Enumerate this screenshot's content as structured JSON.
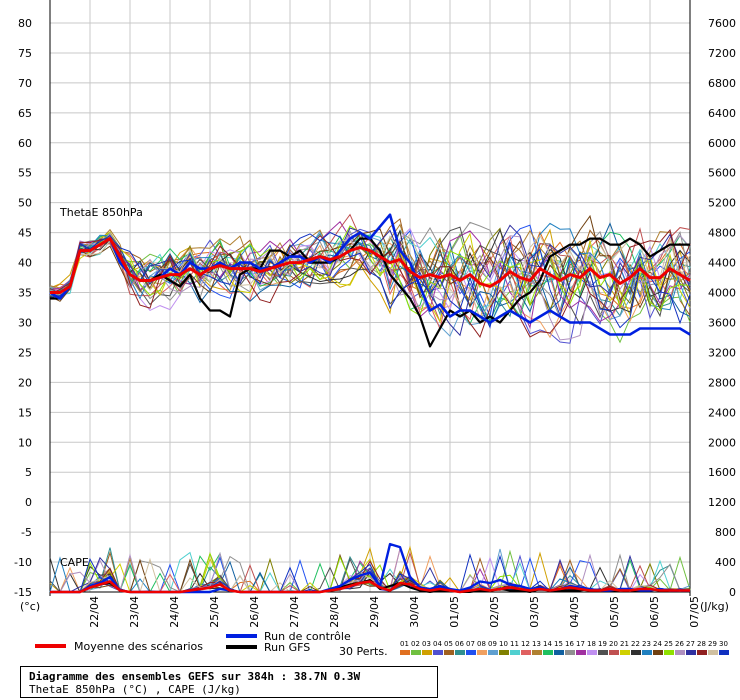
{
  "chart_data": {
    "type": "line",
    "title": "Diagramme des ensembles GEFS sur 384h : 38.7N 0.3W",
    "subtitle": "ThetaE 850hPa (°C) , CAPE (J/kg)",
    "panel_labels": {
      "thetae": "ThetaE 850hPa",
      "cape": "CAPE"
    },
    "left_unit": "(°c)",
    "right_unit": "(J/kg)",
    "left_axis": {
      "ticks": [
        80,
        75,
        70,
        65,
        60,
        55,
        50,
        45,
        40,
        35,
        30,
        25,
        20,
        15,
        10,
        5,
        0,
        -5,
        -10,
        -15
      ],
      "range": [
        -15,
        80
      ]
    },
    "right_axis": {
      "ticks": [
        7600,
        7200,
        6800,
        6400,
        6000,
        5600,
        5200,
        4800,
        4400,
        4000,
        3600,
        3200,
        2800,
        2400,
        2000,
        1600,
        1200,
        800,
        400,
        0
      ],
      "range": [
        0,
        7600
      ]
    },
    "dates": [
      "22/04",
      "23/04",
      "24/04",
      "25/04",
      "26/04",
      "27/04",
      "28/04",
      "29/04",
      "30/04",
      "01/05",
      "02/05",
      "03/05",
      "04/05",
      "05/05",
      "06/05",
      "07/05"
    ],
    "x_range_hours": [
      0,
      384
    ],
    "legend": {
      "mean": "Moyenne des scénarios",
      "control": "Run de contrôle",
      "gfs": "Run GFS",
      "perts": "30 Perts."
    },
    "perturbation_labels": [
      "01",
      "02",
      "03",
      "04",
      "05",
      "06",
      "07",
      "08",
      "09",
      "10",
      "11",
      "12",
      "13",
      "14",
      "15",
      "16",
      "17",
      "18",
      "19",
      "20",
      "21",
      "22",
      "23",
      "24",
      "25",
      "26",
      "27",
      "28",
      "29",
      "30"
    ],
    "perturbation_colors": [
      "#e07020",
      "#70c040",
      "#d0a000",
      "#5050d0",
      "#a06020",
      "#309090",
      "#2050f0",
      "#f0a060",
      "#60a0d0",
      "#808000",
      "#50d0d0",
      "#e06060",
      "#b08030",
      "#20c060",
      "#1060a0",
      "#909090",
      "#a030a0",
      "#c090f0",
      "#505050",
      "#c05050",
      "#d0d000",
      "#303030",
      "#2080c0",
      "#704010",
      "#90e000",
      "#b090c0",
      "#3030a0",
      "#902020",
      "#d0c0a0",
      "#1030c0"
    ],
    "series_mean_thetae": [
      [
        0,
        35
      ],
      [
        6,
        35
      ],
      [
        12,
        36
      ],
      [
        18,
        42
      ],
      [
        24,
        42
      ],
      [
        30,
        43
      ],
      [
        36,
        44
      ],
      [
        42,
        41
      ],
      [
        48,
        38
      ],
      [
        54,
        37
      ],
      [
        60,
        37
      ],
      [
        66,
        37.5
      ],
      [
        72,
        38
      ],
      [
        78,
        38
      ],
      [
        84,
        39
      ],
      [
        90,
        38
      ],
      [
        96,
        39
      ],
      [
        102,
        39.5
      ],
      [
        108,
        39
      ],
      [
        114,
        39
      ],
      [
        120,
        39
      ],
      [
        126,
        38.5
      ],
      [
        132,
        39
      ],
      [
        138,
        39.5
      ],
      [
        144,
        40
      ],
      [
        150,
        40
      ],
      [
        156,
        40.5
      ],
      [
        162,
        41
      ],
      [
        168,
        40.5
      ],
      [
        174,
        41
      ],
      [
        180,
        42
      ],
      [
        186,
        42.5
      ],
      [
        192,
        42
      ],
      [
        198,
        41
      ],
      [
        204,
        40
      ],
      [
        210,
        40.5
      ],
      [
        216,
        38.5
      ],
      [
        222,
        37.5
      ],
      [
        228,
        38
      ],
      [
        234,
        37.5
      ],
      [
        240,
        38
      ],
      [
        246,
        37
      ],
      [
        252,
        38
      ],
      [
        258,
        36.5
      ],
      [
        264,
        36
      ],
      [
        270,
        37
      ],
      [
        276,
        38.5
      ],
      [
        282,
        37.5
      ],
      [
        288,
        37
      ],
      [
        294,
        39
      ],
      [
        300,
        38
      ],
      [
        306,
        37
      ],
      [
        312,
        38
      ],
      [
        318,
        37.5
      ],
      [
        324,
        39
      ],
      [
        330,
        37.5
      ],
      [
        336,
        38
      ],
      [
        342,
        36.5
      ],
      [
        348,
        37.5
      ],
      [
        354,
        39
      ],
      [
        360,
        37.5
      ],
      [
        366,
        37.5
      ],
      [
        372,
        39
      ],
      [
        378,
        38
      ],
      [
        384,
        37
      ]
    ],
    "series_control_thetae": [
      [
        0,
        35
      ],
      [
        6,
        34
      ],
      [
        12,
        36
      ],
      [
        18,
        42
      ],
      [
        24,
        42
      ],
      [
        30,
        43
      ],
      [
        36,
        44
      ],
      [
        42,
        40
      ],
      [
        48,
        38
      ],
      [
        54,
        37
      ],
      [
        60,
        37
      ],
      [
        66,
        37.5
      ],
      [
        72,
        39
      ],
      [
        78,
        38
      ],
      [
        84,
        40
      ],
      [
        90,
        39
      ],
      [
        96,
        39
      ],
      [
        102,
        40
      ],
      [
        108,
        39
      ],
      [
        114,
        40
      ],
      [
        120,
        40
      ],
      [
        126,
        39
      ],
      [
        132,
        39
      ],
      [
        138,
        40
      ],
      [
        144,
        41
      ],
      [
        150,
        41
      ],
      [
        156,
        40
      ],
      [
        162,
        41
      ],
      [
        168,
        40
      ],
      [
        174,
        42
      ],
      [
        180,
        44
      ],
      [
        186,
        45
      ],
      [
        192,
        44
      ],
      [
        198,
        46
      ],
      [
        204,
        48
      ],
      [
        210,
        42
      ],
      [
        216,
        40
      ],
      [
        222,
        36
      ],
      [
        228,
        32
      ],
      [
        234,
        33
      ],
      [
        240,
        31
      ],
      [
        246,
        32
      ],
      [
        252,
        32
      ],
      [
        258,
        31
      ],
      [
        264,
        30
      ],
      [
        270,
        31
      ],
      [
        276,
        32
      ],
      [
        282,
        31
      ],
      [
        288,
        30
      ],
      [
        294,
        31
      ],
      [
        300,
        32
      ],
      [
        306,
        31
      ],
      [
        312,
        30
      ],
      [
        318,
        30
      ],
      [
        324,
        30
      ],
      [
        330,
        29
      ],
      [
        336,
        28
      ],
      [
        342,
        28
      ],
      [
        348,
        28
      ],
      [
        354,
        29
      ],
      [
        360,
        29
      ],
      [
        366,
        29
      ],
      [
        372,
        29
      ],
      [
        378,
        29
      ],
      [
        384,
        28
      ]
    ],
    "series_gfs_thetae": [
      [
        0,
        34
      ],
      [
        6,
        34
      ],
      [
        12,
        36
      ],
      [
        18,
        42
      ],
      [
        24,
        42
      ],
      [
        30,
        43
      ],
      [
        36,
        44
      ],
      [
        42,
        41
      ],
      [
        48,
        38
      ],
      [
        54,
        37
      ],
      [
        60,
        37
      ],
      [
        66,
        38
      ],
      [
        72,
        37
      ],
      [
        78,
        36
      ],
      [
        84,
        38
      ],
      [
        90,
        34
      ],
      [
        96,
        32
      ],
      [
        102,
        32
      ],
      [
        108,
        31
      ],
      [
        114,
        38
      ],
      [
        120,
        39
      ],
      [
        126,
        39
      ],
      [
        132,
        42
      ],
      [
        138,
        42
      ],
      [
        144,
        41
      ],
      [
        150,
        42
      ],
      [
        156,
        40
      ],
      [
        162,
        40
      ],
      [
        168,
        40
      ],
      [
        174,
        41
      ],
      [
        180,
        42
      ],
      [
        186,
        44
      ],
      [
        192,
        44
      ],
      [
        198,
        42
      ],
      [
        204,
        38
      ],
      [
        210,
        36
      ],
      [
        216,
        34
      ],
      [
        222,
        31
      ],
      [
        228,
        26
      ],
      [
        234,
        29
      ],
      [
        240,
        32
      ],
      [
        246,
        31
      ],
      [
        252,
        32
      ],
      [
        258,
        30
      ],
      [
        264,
        31
      ],
      [
        270,
        30
      ],
      [
        276,
        32
      ],
      [
        282,
        34
      ],
      [
        288,
        35
      ],
      [
        294,
        37
      ],
      [
        300,
        41
      ],
      [
        306,
        42
      ],
      [
        312,
        43
      ],
      [
        318,
        43
      ],
      [
        324,
        44
      ],
      [
        330,
        44
      ],
      [
        336,
        43
      ],
      [
        342,
        43
      ],
      [
        348,
        44
      ],
      [
        354,
        43
      ],
      [
        360,
        41
      ],
      [
        366,
        42
      ],
      [
        372,
        43
      ],
      [
        378,
        43
      ],
      [
        384,
        43
      ]
    ],
    "series_mean_cape": [
      [
        0,
        0
      ],
      [
        6,
        0
      ],
      [
        12,
        0
      ],
      [
        18,
        0
      ],
      [
        24,
        60
      ],
      [
        30,
        100
      ],
      [
        36,
        140
      ],
      [
        42,
        20
      ],
      [
        48,
        0
      ],
      [
        54,
        0
      ],
      [
        60,
        0
      ],
      [
        66,
        0
      ],
      [
        72,
        0
      ],
      [
        78,
        0
      ],
      [
        84,
        20
      ],
      [
        90,
        40
      ],
      [
        96,
        60
      ],
      [
        102,
        100
      ],
      [
        108,
        20
      ],
      [
        114,
        0
      ],
      [
        120,
        0
      ],
      [
        126,
        0
      ],
      [
        132,
        0
      ],
      [
        138,
        0
      ],
      [
        144,
        0
      ],
      [
        150,
        0
      ],
      [
        156,
        0
      ],
      [
        162,
        0
      ],
      [
        168,
        20
      ],
      [
        174,
        40
      ],
      [
        180,
        80
      ],
      [
        186,
        120
      ],
      [
        192,
        140
      ],
      [
        198,
        60
      ],
      [
        204,
        20
      ],
      [
        210,
        120
      ],
      [
        216,
        100
      ],
      [
        222,
        40
      ],
      [
        228,
        20
      ],
      [
        234,
        40
      ],
      [
        240,
        20
      ],
      [
        246,
        0
      ],
      [
        252,
        20
      ],
      [
        258,
        40
      ],
      [
        264,
        20
      ],
      [
        270,
        40
      ],
      [
        276,
        60
      ],
      [
        282,
        40
      ],
      [
        288,
        20
      ],
      [
        294,
        40
      ],
      [
        300,
        20
      ],
      [
        306,
        40
      ],
      [
        312,
        60
      ],
      [
        318,
        40
      ],
      [
        324,
        20
      ],
      [
        330,
        20
      ],
      [
        336,
        40
      ],
      [
        342,
        20
      ],
      [
        348,
        20
      ],
      [
        354,
        40
      ],
      [
        360,
        40
      ],
      [
        366,
        20
      ],
      [
        372,
        20
      ],
      [
        378,
        20
      ],
      [
        384,
        20
      ]
    ],
    "series_control_cape": [
      [
        0,
        0
      ],
      [
        6,
        0
      ],
      [
        12,
        0
      ],
      [
        18,
        0
      ],
      [
        24,
        80
      ],
      [
        30,
        120
      ],
      [
        36,
        200
      ],
      [
        42,
        20
      ],
      [
        48,
        0
      ],
      [
        54,
        0
      ],
      [
        60,
        0
      ],
      [
        66,
        0
      ],
      [
        72,
        0
      ],
      [
        78,
        0
      ],
      [
        84,
        0
      ],
      [
        90,
        0
      ],
      [
        96,
        0
      ],
      [
        102,
        40
      ],
      [
        108,
        20
      ],
      [
        114,
        0
      ],
      [
        120,
        0
      ],
      [
        126,
        0
      ],
      [
        132,
        0
      ],
      [
        138,
        0
      ],
      [
        144,
        0
      ],
      [
        150,
        0
      ],
      [
        156,
        0
      ],
      [
        162,
        0
      ],
      [
        168,
        40
      ],
      [
        174,
        80
      ],
      [
        180,
        160
      ],
      [
        186,
        220
      ],
      [
        192,
        260
      ],
      [
        198,
        80
      ],
      [
        204,
        640
      ],
      [
        210,
        600
      ],
      [
        216,
        200
      ],
      [
        222,
        60
      ],
      [
        228,
        40
      ],
      [
        234,
        80
      ],
      [
        240,
        40
      ],
      [
        246,
        20
      ],
      [
        252,
        60
      ],
      [
        258,
        140
      ],
      [
        264,
        120
      ],
      [
        270,
        160
      ],
      [
        276,
        100
      ],
      [
        282,
        80
      ],
      [
        288,
        40
      ],
      [
        294,
        60
      ],
      [
        300,
        20
      ],
      [
        306,
        40
      ],
      [
        312,
        80
      ],
      [
        318,
        60
      ],
      [
        324,
        40
      ],
      [
        330,
        20
      ],
      [
        336,
        20
      ],
      [
        342,
        40
      ],
      [
        348,
        40
      ],
      [
        354,
        20
      ],
      [
        360,
        20
      ],
      [
        366,
        40
      ],
      [
        372,
        20
      ],
      [
        378,
        20
      ],
      [
        384,
        20
      ]
    ],
    "series_gfs_cape": [
      [
        0,
        0
      ],
      [
        6,
        0
      ],
      [
        12,
        0
      ],
      [
        18,
        0
      ],
      [
        24,
        60
      ],
      [
        30,
        100
      ],
      [
        36,
        120
      ],
      [
        42,
        20
      ],
      [
        48,
        0
      ],
      [
        54,
        0
      ],
      [
        60,
        0
      ],
      [
        66,
        0
      ],
      [
        72,
        0
      ],
      [
        78,
        0
      ],
      [
        84,
        0
      ],
      [
        90,
        40
      ],
      [
        96,
        60
      ],
      [
        102,
        100
      ],
      [
        108,
        20
      ],
      [
        114,
        0
      ],
      [
        120,
        0
      ],
      [
        126,
        0
      ],
      [
        132,
        0
      ],
      [
        138,
        0
      ],
      [
        144,
        0
      ],
      [
        150,
        0
      ],
      [
        156,
        0
      ],
      [
        162,
        0
      ],
      [
        168,
        20
      ],
      [
        174,
        60
      ],
      [
        180,
        100
      ],
      [
        186,
        120
      ],
      [
        192,
        160
      ],
      [
        198,
        40
      ],
      [
        204,
        80
      ],
      [
        210,
        120
      ],
      [
        216,
        60
      ],
      [
        222,
        20
      ],
      [
        228,
        0
      ],
      [
        234,
        20
      ],
      [
        240,
        20
      ],
      [
        246,
        0
      ],
      [
        252,
        0
      ],
      [
        258,
        20
      ],
      [
        264,
        20
      ],
      [
        270,
        40
      ],
      [
        276,
        20
      ],
      [
        282,
        20
      ],
      [
        288,
        0
      ],
      [
        294,
        40
      ],
      [
        300,
        20
      ],
      [
        306,
        20
      ],
      [
        312,
        20
      ],
      [
        318,
        20
      ],
      [
        324,
        40
      ],
      [
        330,
        20
      ],
      [
        336,
        20
      ],
      [
        342,
        20
      ],
      [
        348,
        20
      ],
      [
        354,
        20
      ],
      [
        360,
        20
      ],
      [
        366,
        40
      ],
      [
        372,
        20
      ],
      [
        378,
        20
      ],
      [
        384,
        20
      ]
    ],
    "grid": true
  }
}
